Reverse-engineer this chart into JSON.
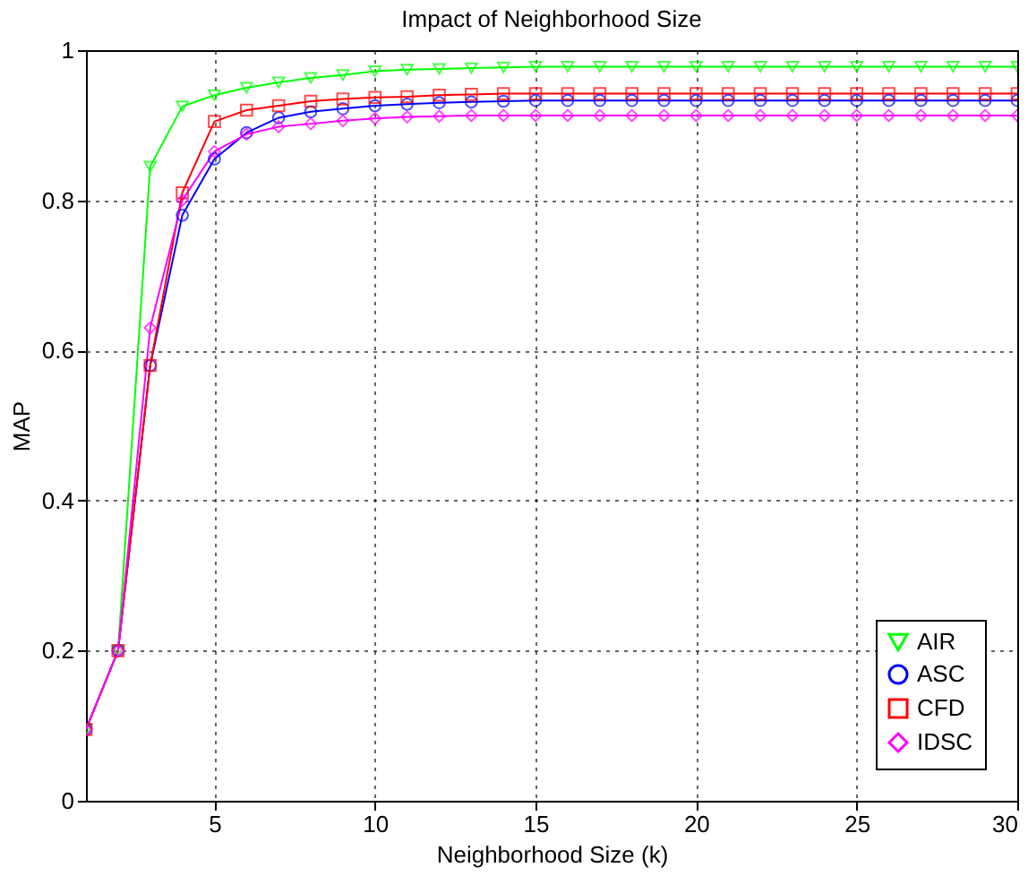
{
  "chart_data": {
    "type": "line",
    "title": "Impact of Neighborhood Size",
    "xlabel": "Neighborhood Size (k)",
    "ylabel": "MAP",
    "x": [
      1,
      2,
      3,
      4,
      5,
      6,
      7,
      8,
      9,
      10,
      11,
      12,
      13,
      14,
      15,
      16,
      17,
      18,
      19,
      20,
      21,
      22,
      23,
      24,
      25,
      26,
      27,
      28,
      29,
      30
    ],
    "series": [
      {
        "name": "AIR",
        "color": "#00ff00",
        "marker": "triangle",
        "values": [
          0.095,
          0.2,
          0.845,
          0.925,
          0.94,
          0.95,
          0.957,
          0.963,
          0.967,
          0.972,
          0.974,
          0.975,
          0.976,
          0.977,
          0.978,
          0.978,
          0.978,
          0.978,
          0.978,
          0.978,
          0.978,
          0.978,
          0.978,
          0.978,
          0.978,
          0.978,
          0.978,
          0.978,
          0.978,
          0.978
        ]
      },
      {
        "name": "ASC",
        "color": "#0000ff",
        "marker": "circle",
        "values": [
          0.095,
          0.2,
          0.58,
          0.78,
          0.855,
          0.89,
          0.91,
          0.918,
          0.922,
          0.926,
          0.928,
          0.93,
          0.931,
          0.932,
          0.933,
          0.933,
          0.933,
          0.933,
          0.933,
          0.933,
          0.933,
          0.933,
          0.933,
          0.933,
          0.933,
          0.933,
          0.933,
          0.933,
          0.933,
          0.933
        ]
      },
      {
        "name": "CFD",
        "color": "#ff0000",
        "marker": "square",
        "values": [
          0.095,
          0.2,
          0.58,
          0.81,
          0.905,
          0.92,
          0.926,
          0.932,
          0.935,
          0.937,
          0.938,
          0.94,
          0.941,
          0.942,
          0.942,
          0.942,
          0.942,
          0.942,
          0.942,
          0.942,
          0.942,
          0.942,
          0.942,
          0.942,
          0.942,
          0.942,
          0.942,
          0.942,
          0.942,
          0.942
        ]
      },
      {
        "name": "IDSC",
        "color": "#ff00ff",
        "marker": "diamond",
        "values": [
          0.095,
          0.2,
          0.63,
          0.8,
          0.865,
          0.888,
          0.898,
          0.902,
          0.906,
          0.909,
          0.911,
          0.912,
          0.913,
          0.913,
          0.913,
          0.913,
          0.913,
          0.913,
          0.913,
          0.913,
          0.913,
          0.913,
          0.913,
          0.913,
          0.913,
          0.913,
          0.913,
          0.913,
          0.913,
          0.913
        ]
      }
    ],
    "xlim": [
      1,
      30
    ],
    "xticks": [
      5,
      10,
      15,
      20,
      25,
      30
    ],
    "ylim": [
      0,
      1
    ],
    "yticks": [
      0,
      0.2,
      0.4,
      0.6,
      0.8,
      1
    ],
    "grid": true,
    "legend": "bottom right",
    "line_style": "solid"
  }
}
